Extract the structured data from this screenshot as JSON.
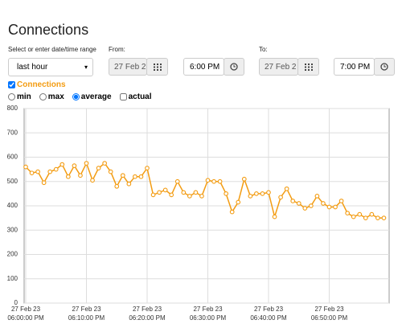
{
  "header": {
    "title": "Connections"
  },
  "form": {
    "range_label": "Select or enter date/time range",
    "range_value": "last hour",
    "from_label": "From:",
    "from_date": "27 Feb 2",
    "from_time": "6:00 PM",
    "to_label": "To:",
    "to_date": "27 Feb 2",
    "to_time": "7:00 PM",
    "modes": [
      "min",
      "max",
      "average"
    ],
    "selected_mode": "average",
    "actual": "actual"
  },
  "chart_data": {
    "type": "line",
    "x": [
      0,
      1,
      2,
      3,
      4,
      5,
      6,
      7,
      8,
      9,
      10,
      11,
      12,
      13,
      14,
      15,
      16,
      17,
      18,
      19,
      20,
      21,
      22,
      23,
      24,
      25,
      26,
      27,
      28,
      29,
      30,
      31,
      32,
      33,
      34,
      35,
      36,
      37,
      38,
      39,
      40,
      41,
      42,
      43,
      44,
      45,
      46,
      47,
      48,
      49,
      50,
      51,
      52,
      53,
      54,
      55,
      56,
      57,
      58,
      59
    ],
    "series": [
      {
        "name": "Connections",
        "color": "#f39c12",
        "values": [
          560,
          535,
          540,
          495,
          540,
          550,
          570,
          520,
          565,
          525,
          575,
          505,
          555,
          575,
          540,
          480,
          525,
          490,
          520,
          520,
          555,
          445,
          455,
          465,
          445,
          500,
          455,
          440,
          455,
          440,
          505,
          500,
          500,
          450,
          375,
          415,
          510,
          440,
          450,
          450,
          455,
          355,
          435,
          470,
          420,
          410,
          390,
          400,
          440,
          410,
          395,
          395,
          420,
          370,
          355,
          365,
          350,
          365,
          350,
          350
        ]
      }
    ],
    "xlim": [
      0,
      60
    ],
    "xticks": [
      {
        "value": 0,
        "label": [
          "27 Feb 23",
          "06:00:00 PM"
        ]
      },
      {
        "value": 10,
        "label": [
          "27 Feb 23",
          "06:10:00 PM"
        ]
      },
      {
        "value": 20,
        "label": [
          "27 Feb 23",
          "06:20:00 PM"
        ]
      },
      {
        "value": 30,
        "label": [
          "27 Feb 23",
          "06:30:00 PM"
        ]
      },
      {
        "value": 40,
        "label": [
          "27 Feb 23",
          "06:40:00 PM"
        ]
      },
      {
        "value": 50,
        "label": [
          "27 Feb 23",
          "06:50:00 PM"
        ]
      }
    ],
    "ylim": [
      0,
      800
    ],
    "yticks": [
      0,
      100,
      200,
      300,
      400,
      500,
      600,
      700,
      800
    ],
    "grid": true
  }
}
